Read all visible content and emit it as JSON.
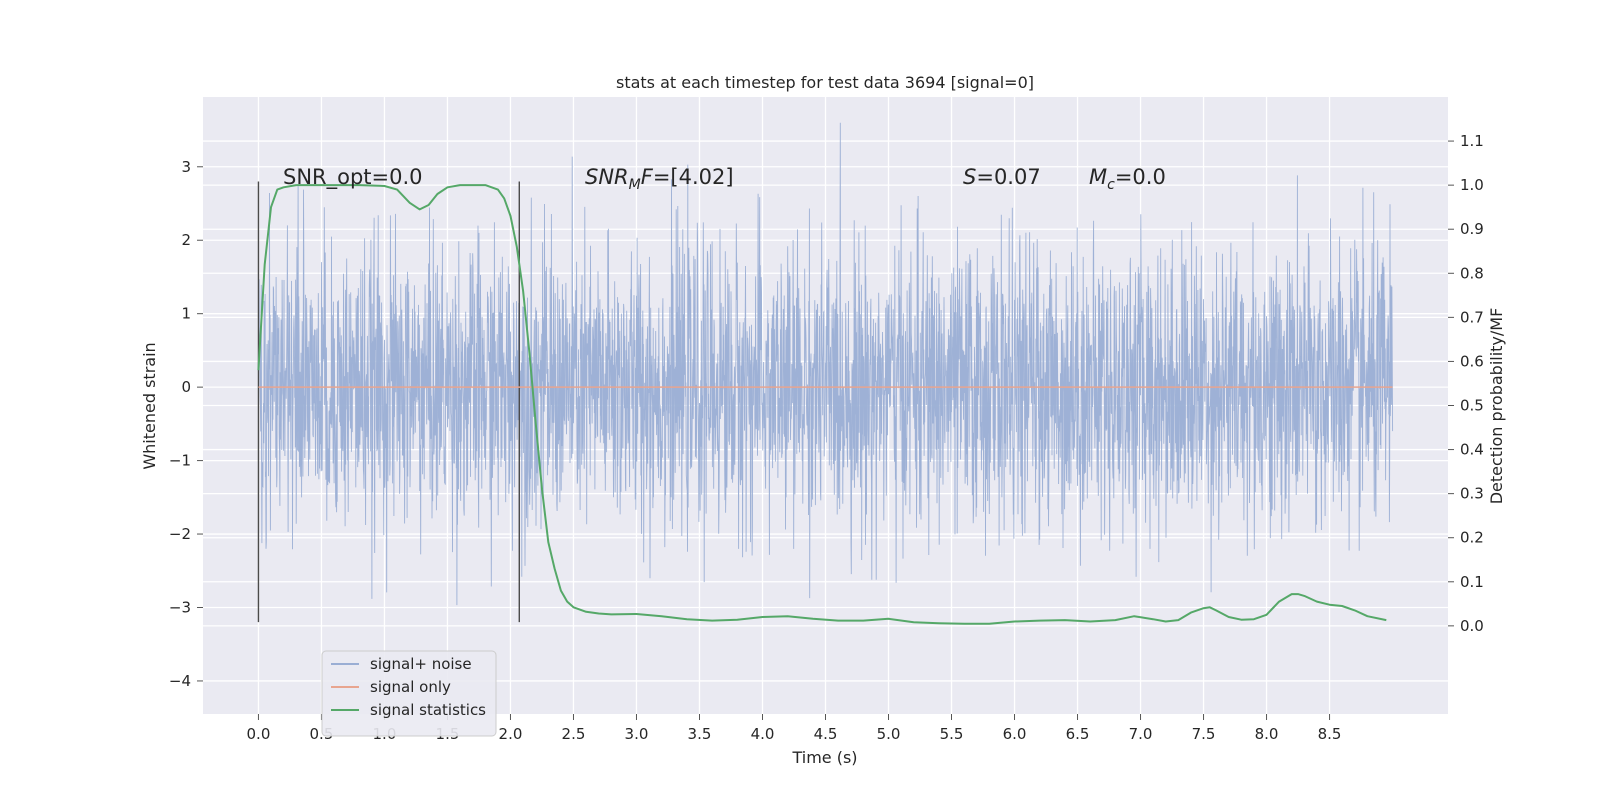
{
  "chart_data": {
    "type": "line",
    "title": "stats at each timestep for test data 3694 [signal=0]",
    "xlabel": "Time (s)",
    "ylabel": "Whitened strain",
    "y2label": "Detection probability/MF",
    "xlim": [
      -0.44,
      9.44
    ],
    "ylim": [
      -4.45,
      3.95
    ],
    "y2lim": [
      -0.2,
      1.2
    ],
    "x_ticks": [
      "0.0",
      "0.5",
      "1.0",
      "1.5",
      "2.0",
      "2.5",
      "3.0",
      "3.5",
      "4.0",
      "4.5",
      "5.0",
      "5.5",
      "6.0",
      "6.5",
      "7.0",
      "7.5",
      "8.0",
      "8.5"
    ],
    "y_ticks": [
      "3",
      "2",
      "1",
      "0",
      "−1",
      "−2",
      "−3",
      "−4"
    ],
    "y2_ticks": [
      "1.1",
      "1.0",
      "0.9",
      "0.8",
      "0.7",
      "0.6",
      "0.5",
      "0.4",
      "0.3",
      "0.2",
      "0.1",
      "0.0"
    ],
    "grid": true,
    "legend_position": "lower-left",
    "annotations": {
      "snr_opt": "SNR_opt=0.0",
      "snr_mf_italic": "SNR",
      "snr_mf_sub": "M",
      "snr_mf_rest_italic": "F",
      "snr_mf_value": "=[4.02]",
      "s_italic": "S",
      "s_value": "=0.07",
      "mc_italic": "M",
      "mc_sub": "c",
      "mc_value": "=0.0"
    },
    "vertical_markers": [
      0.0,
      2.07
    ],
    "series": [
      {
        "name": "signal+ noise",
        "color": "#9aaed4",
        "kind": "noise",
        "x_range": [
          0.0,
          9.0
        ],
        "envelope": [
          -3.2,
          3.6
        ],
        "typical_band": [
          -1.5,
          1.6
        ]
      },
      {
        "name": "signal only",
        "color": "#e8a58f",
        "x": [
          0.0,
          9.0
        ],
        "y": [
          0.0,
          0.0
        ]
      },
      {
        "name": "signal statistics",
        "color": "#55a868",
        "axis": "right",
        "x": [
          0.0,
          0.05,
          0.1,
          0.15,
          0.2,
          0.3,
          0.5,
          0.8,
          1.0,
          1.1,
          1.2,
          1.28,
          1.35,
          1.42,
          1.5,
          1.6,
          1.8,
          1.9,
          1.95,
          2.0,
          2.05,
          2.1,
          2.15,
          2.2,
          2.25,
          2.3,
          2.35,
          2.4,
          2.45,
          2.5,
          2.6,
          2.7,
          2.8,
          3.0,
          3.2,
          3.4,
          3.6,
          3.8,
          4.0,
          4.2,
          4.4,
          4.6,
          4.8,
          5.0,
          5.2,
          5.4,
          5.6,
          5.8,
          6.0,
          6.2,
          6.4,
          6.6,
          6.8,
          6.95,
          7.1,
          7.2,
          7.3,
          7.4,
          7.5,
          7.55,
          7.6,
          7.7,
          7.8,
          7.9,
          8.0,
          8.1,
          8.2,
          8.25,
          8.3,
          8.4,
          8.5,
          8.6,
          8.7,
          8.8,
          8.95
        ],
        "y": [
          0.58,
          0.82,
          0.95,
          0.99,
          0.995,
          1.0,
          1.0,
          1.0,
          0.998,
          0.99,
          0.96,
          0.945,
          0.955,
          0.98,
          0.995,
          1.0,
          1.0,
          0.99,
          0.97,
          0.93,
          0.86,
          0.76,
          0.62,
          0.46,
          0.31,
          0.19,
          0.13,
          0.08,
          0.055,
          0.042,
          0.032,
          0.028,
          0.026,
          0.027,
          0.022,
          0.015,
          0.012,
          0.014,
          0.02,
          0.022,
          0.016,
          0.012,
          0.012,
          0.016,
          0.008,
          0.006,
          0.005,
          0.005,
          0.01,
          0.012,
          0.013,
          0.01,
          0.013,
          0.022,
          0.015,
          0.01,
          0.013,
          0.03,
          0.04,
          0.042,
          0.035,
          0.02,
          0.014,
          0.015,
          0.025,
          0.055,
          0.072,
          0.072,
          0.068,
          0.055,
          0.048,
          0.045,
          0.035,
          0.022,
          0.013
        ]
      }
    ]
  }
}
